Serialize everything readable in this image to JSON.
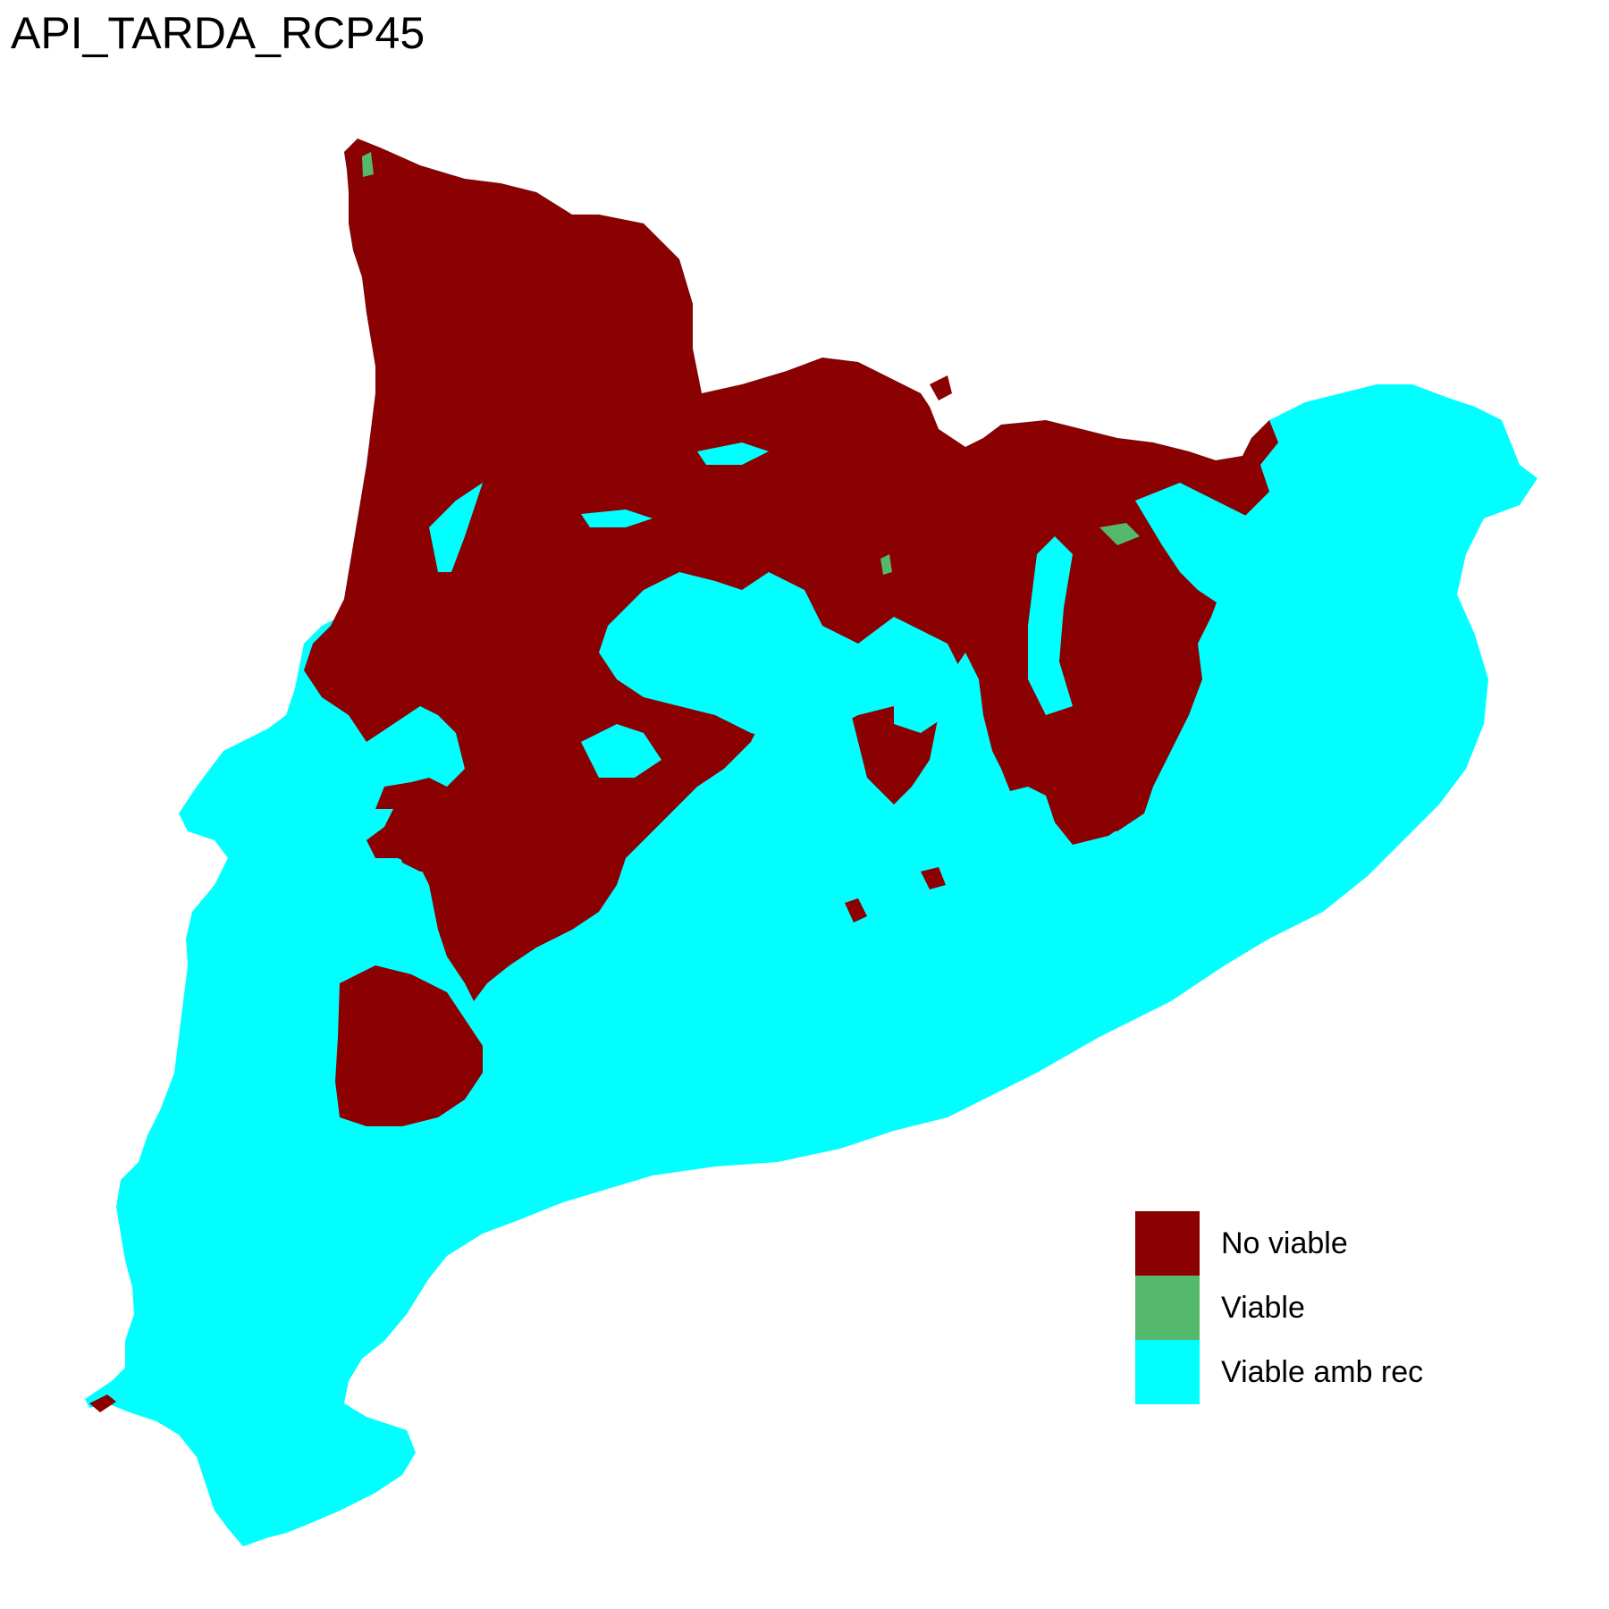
{
  "map": {
    "title": "API_TARDA_RCP45",
    "colors": {
      "no_viable": "#8b0000",
      "viable": "#54b96c",
      "viable_amb_rec": "#00ffff",
      "background": "#ffffff"
    }
  },
  "legend": {
    "items": [
      {
        "key": "no_viable",
        "label": "No viable",
        "color": "#8b0000"
      },
      {
        "key": "viable",
        "label": "Viable",
        "color": "#54b96c"
      },
      {
        "key": "viable_amb_rec",
        "label": "Viable amb rec",
        "color": "#00ffff"
      }
    ]
  }
}
